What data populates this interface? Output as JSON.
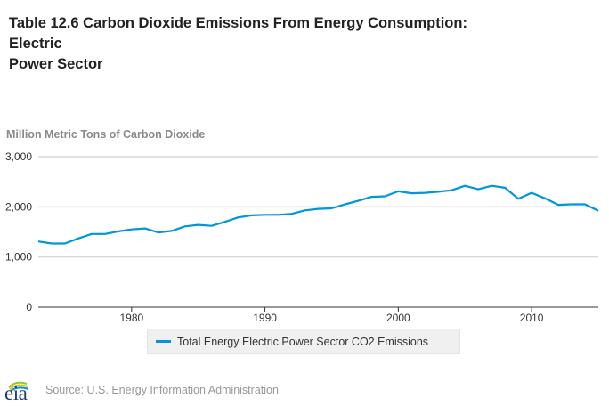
{
  "title_lines": [
    "Table 12.6 Carbon Dioxide Emissions From Energy Consumption:",
    "Electric",
    "Power Sector"
  ],
  "units_label": "Million Metric Tons of Carbon Dioxide",
  "legend": {
    "label": "Total Energy Electric Power Sector CO2 Emissions",
    "color": "#0096d7"
  },
  "footer": {
    "logo_text": "eia",
    "source": "Source: U.S. Energy Information Administration"
  },
  "chart_data": {
    "type": "line",
    "title": "Table 12.6 Carbon Dioxide Emissions From Energy Consumption: Electric Power Sector",
    "xlabel": "",
    "ylabel": "Million Metric Tons of Carbon Dioxide",
    "xlim": [
      1973,
      2015
    ],
    "ylim": [
      0,
      3000
    ],
    "yticks": [
      0,
      1000,
      2000,
      3000
    ],
    "ytick_labels": [
      "0",
      "1,000",
      "2,000",
      "3,000"
    ],
    "xticks": [
      1980,
      1990,
      2000,
      2010
    ],
    "xtick_labels": [
      "1980",
      "1990",
      "2000",
      "2010"
    ],
    "grid": "horizontal",
    "legend_position": "bottom-center",
    "x": [
      1973,
      1974,
      1975,
      1976,
      1977,
      1978,
      1979,
      1980,
      1981,
      1982,
      1983,
      1984,
      1985,
      1986,
      1987,
      1988,
      1989,
      1990,
      1991,
      1992,
      1993,
      1994,
      1995,
      1996,
      1997,
      1998,
      1999,
      2000,
      2001,
      2002,
      2003,
      2004,
      2005,
      2006,
      2007,
      2008,
      2009,
      2010,
      2011,
      2012,
      2013,
      2014,
      2015
    ],
    "series": [
      {
        "name": "Total Energy Electric Power Sector CO2 Emissions",
        "color": "#0096d7",
        "values": [
          1310,
          1270,
          1270,
          1370,
          1460,
          1460,
          1510,
          1550,
          1570,
          1490,
          1520,
          1610,
          1640,
          1620,
          1700,
          1790,
          1830,
          1840,
          1840,
          1860,
          1930,
          1960,
          1970,
          2050,
          2120,
          2200,
          2210,
          2310,
          2270,
          2280,
          2300,
          2330,
          2420,
          2350,
          2420,
          2380,
          2160,
          2280,
          2170,
          2040,
          2050,
          2050,
          1920
        ]
      }
    ]
  }
}
